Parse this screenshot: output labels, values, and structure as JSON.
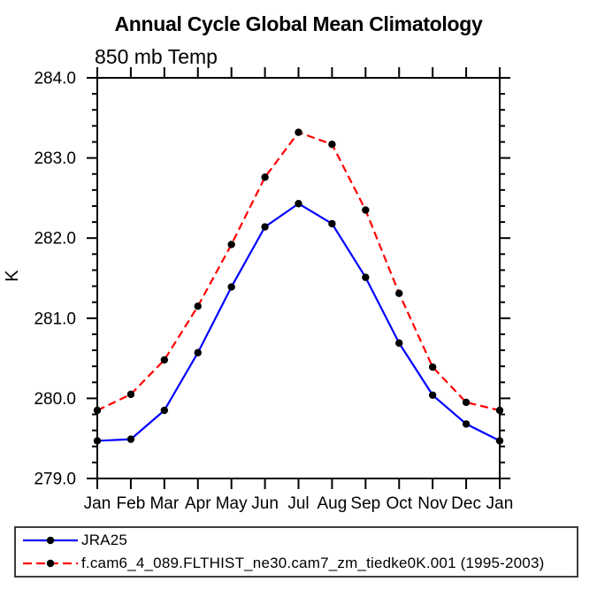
{
  "chart_data": {
    "type": "line",
    "title": "Annual Cycle Global Mean Climatology",
    "subtitle_left": "850 mb Temp",
    "ylabel": "K",
    "xlabel": "",
    "categories": [
      "Jan",
      "Feb",
      "Mar",
      "Apr",
      "May",
      "Jun",
      "Jul",
      "Aug",
      "Sep",
      "Oct",
      "Nov",
      "Dec",
      "Jan"
    ],
    "ylim": [
      279.0,
      284.0
    ],
    "ytick_major": 1.0,
    "ytick_minor": 0.2,
    "ytick_labels": [
      "279.0",
      "280.0",
      "281.0",
      "282.0",
      "283.0",
      "284.0"
    ],
    "grid": false,
    "legend_position": "bottom-left-boxed",
    "axis_color": "#000000",
    "series": [
      {
        "name": "JRA25",
        "color": "#0000ff",
        "line_style": "solid",
        "marker": "filled-circle",
        "marker_color": "#000000",
        "values": [
          279.47,
          279.49,
          279.85,
          280.57,
          281.39,
          282.14,
          282.43,
          282.18,
          281.51,
          280.69,
          280.04,
          279.68,
          279.47
        ]
      },
      {
        "name": "f.cam6_4_089.FLTHIST_ne30.cam7_zm_tiedke0K.001 (1995-2003)",
        "color": "#ff0000",
        "line_style": "dashed",
        "marker": "filled-circle",
        "marker_color": "#000000",
        "values": [
          279.85,
          280.05,
          280.48,
          281.15,
          281.92,
          282.76,
          283.32,
          283.17,
          282.35,
          281.31,
          280.39,
          279.95,
          279.85
        ]
      }
    ]
  }
}
